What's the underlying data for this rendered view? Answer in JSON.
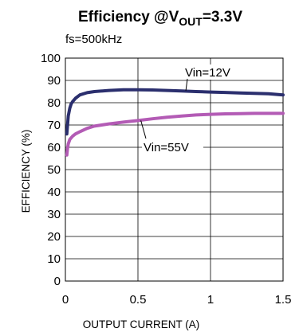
{
  "chart_data": {
    "type": "line",
    "title_main": "Efficiency @V",
    "title_sub": "OUT",
    "title_end": "=3.3V",
    "subtitle": "fs=500kHz",
    "xlabel": "OUTPUT CURRENT (A)",
    "ylabel": "EFFICIENCY (%)",
    "xlim": [
      0,
      1.5
    ],
    "ylim": [
      0,
      100
    ],
    "xticks": [
      0,
      0.5,
      1,
      1.5
    ],
    "xtick_labels": [
      "0",
      "0.5",
      "1",
      "1.5"
    ],
    "yticks": [
      0,
      10,
      20,
      30,
      40,
      50,
      60,
      70,
      80,
      90,
      100
    ],
    "ytick_labels": [
      "0",
      "10",
      "20",
      "30",
      "40",
      "50",
      "60",
      "70",
      "80",
      "90",
      "100"
    ],
    "grid": true,
    "series": [
      {
        "name": "Vin=12V",
        "color": "#2b2f6e",
        "x": [
          0.01,
          0.015,
          0.02,
          0.03,
          0.04,
          0.05,
          0.07,
          0.1,
          0.15,
          0.2,
          0.3,
          0.4,
          0.5,
          0.6,
          0.7,
          0.8,
          0.9,
          1.0,
          1.1,
          1.2,
          1.3,
          1.4,
          1.5
        ],
        "y": [
          66,
          70,
          74,
          77.5,
          79.5,
          80.5,
          82,
          83.5,
          84.5,
          85,
          85.5,
          85.8,
          85.8,
          85.7,
          85.5,
          85.3,
          85.0,
          84.8,
          84.6,
          84.4,
          84.2,
          84.0,
          83.5
        ]
      },
      {
        "name": "Vin=55V",
        "color": "#b35bb5",
        "x": [
          0.01,
          0.015,
          0.02,
          0.03,
          0.05,
          0.07,
          0.1,
          0.15,
          0.2,
          0.3,
          0.4,
          0.5,
          0.6,
          0.7,
          0.8,
          0.9,
          1.0,
          1.1,
          1.2,
          1.3,
          1.4,
          1.5
        ],
        "y": [
          56.5,
          59.5,
          61.5,
          63.5,
          65,
          66,
          67,
          68.5,
          69.5,
          70.5,
          71.3,
          72,
          72.8,
          73.5,
          74,
          74.5,
          74.8,
          75,
          75.1,
          75.2,
          75.2,
          75.2
        ]
      }
    ],
    "annotations": [
      {
        "text": "Vin=12V",
        "series": "Vin=12V",
        "anchor_x": 0.83,
        "anchor_y": 85.4
      },
      {
        "text": "Vin=55V",
        "series": "Vin=55V",
        "anchor_x": 0.52,
        "anchor_y": 72.0
      }
    ]
  }
}
